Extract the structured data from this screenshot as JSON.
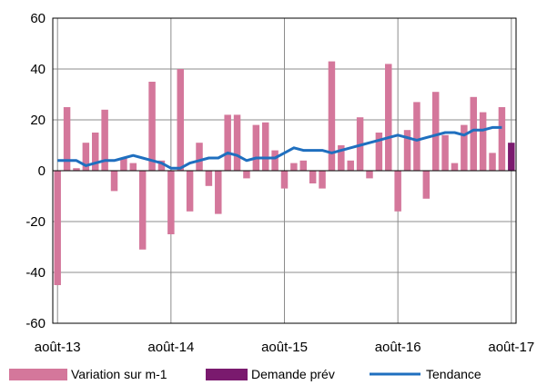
{
  "chart_data": {
    "type": "bar",
    "x_tick_labels": [
      "août-13",
      "août-14",
      "août-15",
      "août-16",
      "août-17"
    ],
    "ylim": [
      -60,
      60
    ],
    "yticks": [
      -60,
      -40,
      -20,
      0,
      20,
      40,
      60
    ],
    "grid": true,
    "legend_position": "bottom",
    "colors": {
      "variation": "#d4779b",
      "demande": "#7a1a6e",
      "tendance": "#1f6fbf"
    },
    "series": [
      {
        "name": "Variation sur m-1",
        "kind": "bar",
        "values": [
          -45,
          25,
          1,
          11,
          15,
          24,
          -8,
          5,
          3,
          -31,
          35,
          4,
          -25,
          40,
          -16,
          11,
          -6,
          -17,
          22,
          22,
          -3,
          18,
          19,
          8,
          -7,
          3,
          4,
          -5,
          -7,
          43,
          10,
          4,
          21,
          -3,
          15,
          42,
          -16,
          16,
          27,
          -11,
          31,
          14,
          3,
          18,
          29,
          23,
          7,
          25
        ]
      },
      {
        "name": "Demande prév",
        "kind": "bar",
        "values": [
          null,
          null,
          null,
          null,
          null,
          null,
          null,
          null,
          null,
          null,
          null,
          null,
          null,
          null,
          null,
          null,
          null,
          null,
          null,
          null,
          null,
          null,
          null,
          null,
          null,
          null,
          null,
          null,
          null,
          null,
          null,
          null,
          null,
          null,
          null,
          null,
          null,
          null,
          null,
          null,
          null,
          null,
          null,
          null,
          null,
          null,
          null,
          null,
          11
        ]
      },
      {
        "name": "Tendance",
        "kind": "line",
        "values": [
          4,
          4,
          4,
          2,
          3,
          4,
          4,
          5,
          6,
          5,
          4,
          3,
          1,
          1,
          3,
          4,
          5,
          5,
          7,
          6,
          4,
          5,
          5,
          5,
          7,
          9,
          8,
          8,
          8,
          7,
          8,
          9,
          10,
          11,
          12,
          13,
          14,
          13,
          12,
          13,
          14,
          15,
          15,
          14,
          16,
          16,
          17,
          17
        ]
      }
    ]
  }
}
